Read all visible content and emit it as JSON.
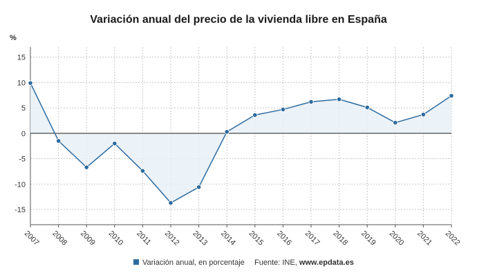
{
  "chart_data": {
    "type": "area",
    "title": "Variación anual del precio de la vivienda libre en España",
    "ylabel": "%",
    "xlabel": "",
    "x": [
      "2007",
      "2008",
      "2009",
      "2010",
      "2011",
      "2012",
      "2013",
      "2014",
      "2015",
      "2016",
      "2017",
      "2018",
      "2019",
      "2020",
      "2021",
      "2022"
    ],
    "series": [
      {
        "name": "Variación anual, en porcentaje",
        "values": [
          9.9,
          -1.5,
          -6.7,
          -2.0,
          -7.4,
          -13.7,
          -10.6,
          0.3,
          3.6,
          4.7,
          6.2,
          6.7,
          5.1,
          2.1,
          3.7,
          7.4
        ]
      }
    ],
    "ylim": [
      -18,
      17
    ],
    "yticks": [
      -15,
      -10,
      -5,
      0,
      5,
      10,
      15
    ],
    "grid": true,
    "legend_position": "bottom",
    "colors": {
      "line": "#2e6b9e",
      "fill": "#e8f0f7",
      "marker": "#2e6b9e",
      "zero_line": "#333333",
      "grid": "#c8c8c8"
    }
  },
  "footer": {
    "source_label": "Fuente: INE, ",
    "source_site": "www.epdata.es"
  }
}
